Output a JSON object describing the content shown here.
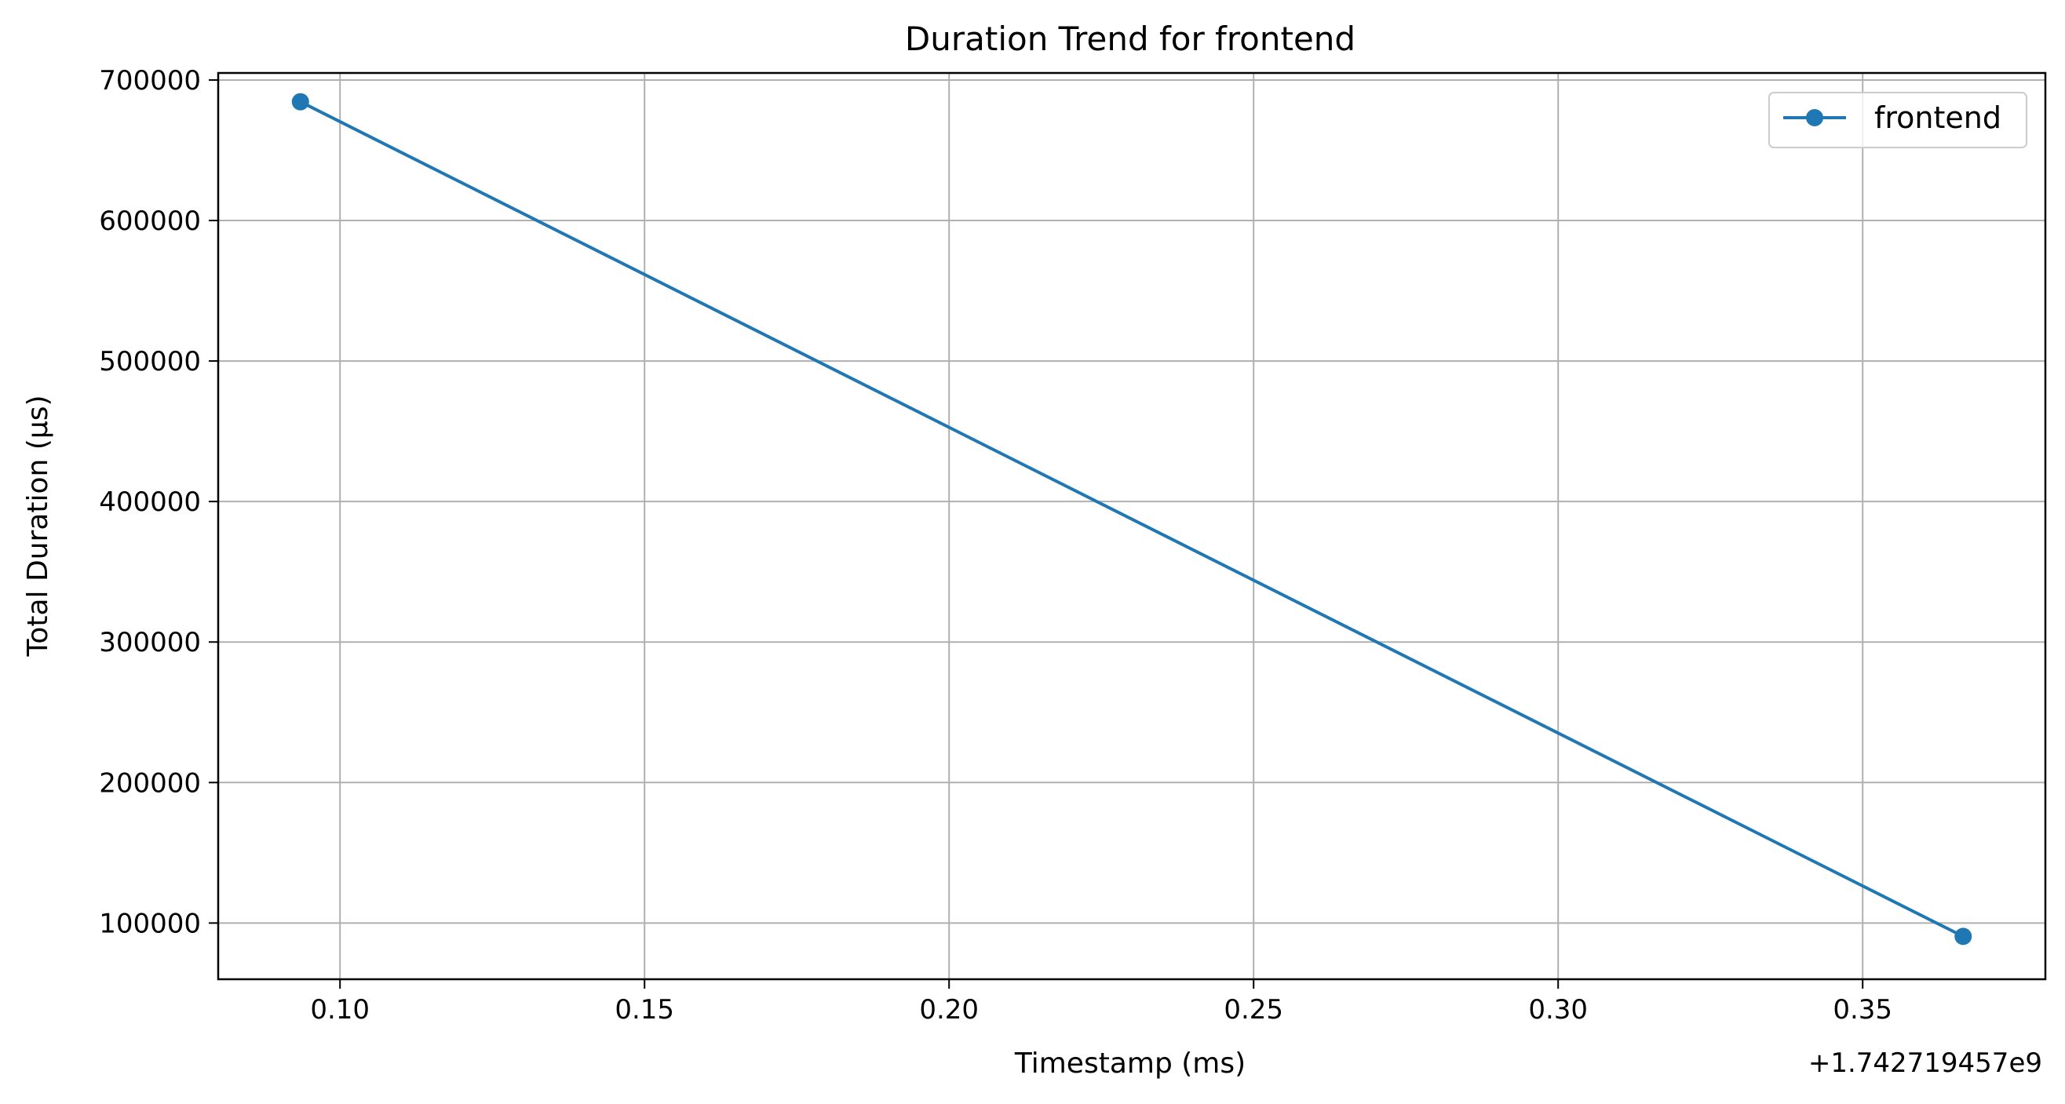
{
  "chart_data": {
    "type": "line",
    "title": "Duration Trend for frontend",
    "xlabel": "Timestamp (ms)",
    "ylabel": "Total Duration (µs)",
    "x_offset_label": "+1.742719457e9",
    "xlim": [
      0.08,
      0.38
    ],
    "ylim": [
      60000,
      705000
    ],
    "x_ticks": [
      0.1,
      0.15,
      0.2,
      0.25,
      0.3,
      0.35
    ],
    "x_tick_labels": [
      "0.10",
      "0.15",
      "0.20",
      "0.25",
      "0.30",
      "0.35"
    ],
    "y_ticks": [
      100000,
      200000,
      300000,
      400000,
      500000,
      600000,
      700000
    ],
    "y_tick_labels": [
      "100000",
      "200000",
      "300000",
      "400000",
      "500000",
      "600000",
      "700000"
    ],
    "grid": true,
    "legend_position": "top-right",
    "series": [
      {
        "name": "frontend",
        "color": "#1f77b4",
        "marker": "circle",
        "x": [
          0.0935,
          0.3665
        ],
        "y": [
          684500,
          90500
        ]
      }
    ]
  }
}
